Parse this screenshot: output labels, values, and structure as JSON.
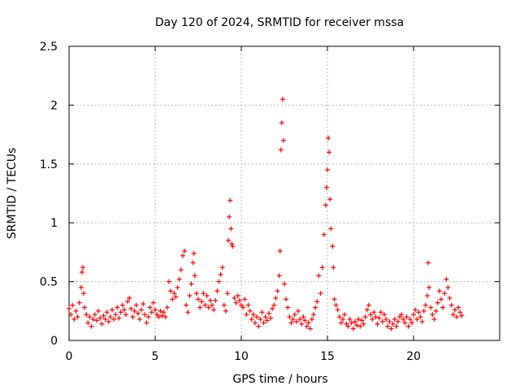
{
  "chart_data": {
    "type": "scatter",
    "title": "Day 120 of 2024, SRMTID for receiver mssa",
    "xlabel": "GPS time / hours",
    "ylabel": "SRMTID / TECUs",
    "xlim": [
      0,
      25
    ],
    "ylim": [
      0,
      2.5
    ],
    "xticks": [
      0,
      5,
      10,
      15,
      20
    ],
    "xtick_labels": [
      "0",
      "5",
      "10",
      "15",
      "20"
    ],
    "yticks": [
      0,
      0.5,
      1,
      1.5,
      2,
      2.5
    ],
    "ytick_labels": [
      "0",
      "0.5",
      "1",
      "1.5",
      "2",
      "2.5"
    ],
    "grid": true,
    "marker": "+",
    "series": [
      {
        "name": "SRMTID",
        "color": "#ff0000",
        "points": [
          [
            0.0,
            0.27
          ],
          [
            0.1,
            0.22
          ],
          [
            0.2,
            0.3
          ],
          [
            0.3,
            0.18
          ],
          [
            0.4,
            0.25
          ],
          [
            0.5,
            0.2
          ],
          [
            0.6,
            0.32
          ],
          [
            0.7,
            0.45
          ],
          [
            0.75,
            0.58
          ],
          [
            0.8,
            0.62
          ],
          [
            0.85,
            0.4
          ],
          [
            0.9,
            0.28
          ],
          [
            1.0,
            0.22
          ],
          [
            1.1,
            0.15
          ],
          [
            1.2,
            0.2
          ],
          [
            1.3,
            0.12
          ],
          [
            1.4,
            0.18
          ],
          [
            1.5,
            0.22
          ],
          [
            1.6,
            0.17
          ],
          [
            1.7,
            0.25
          ],
          [
            1.8,
            0.19
          ],
          [
            1.9,
            0.14
          ],
          [
            2.0,
            0.21
          ],
          [
            2.1,
            0.18
          ],
          [
            2.2,
            0.24
          ],
          [
            2.3,
            0.16
          ],
          [
            2.4,
            0.2
          ],
          [
            2.5,
            0.26
          ],
          [
            2.6,
            0.18
          ],
          [
            2.7,
            0.22
          ],
          [
            2.8,
            0.28
          ],
          [
            2.9,
            0.19
          ],
          [
            3.0,
            0.24
          ],
          [
            3.1,
            0.3
          ],
          [
            3.2,
            0.26
          ],
          [
            3.3,
            0.22
          ],
          [
            3.4,
            0.33
          ],
          [
            3.5,
            0.36
          ],
          [
            3.6,
            0.27
          ],
          [
            3.7,
            0.2
          ],
          [
            3.8,
            0.25
          ],
          [
            3.9,
            0.3
          ],
          [
            4.0,
            0.23
          ],
          [
            4.1,
            0.18
          ],
          [
            4.2,
            0.26
          ],
          [
            4.3,
            0.31
          ],
          [
            4.4,
            0.22
          ],
          [
            4.5,
            0.15
          ],
          [
            4.6,
            0.2
          ],
          [
            4.7,
            0.28
          ],
          [
            4.8,
            0.24
          ],
          [
            4.9,
            0.32
          ],
          [
            5.0,
            0.26
          ],
          [
            5.1,
            0.22
          ],
          [
            5.2,
            0.2
          ],
          [
            5.3,
            0.25
          ],
          [
            5.4,
            0.21
          ],
          [
            5.5,
            0.24
          ],
          [
            5.6,
            0.2
          ],
          [
            5.7,
            0.28
          ],
          [
            5.8,
            0.5
          ],
          [
            5.9,
            0.42
          ],
          [
            6.0,
            0.35
          ],
          [
            6.1,
            0.4
          ],
          [
            6.2,
            0.37
          ],
          [
            6.3,
            0.45
          ],
          [
            6.4,
            0.52
          ],
          [
            6.5,
            0.6
          ],
          [
            6.6,
            0.72
          ],
          [
            6.7,
            0.76
          ],
          [
            6.8,
            0.3
          ],
          [
            6.9,
            0.24
          ],
          [
            7.0,
            0.38
          ],
          [
            7.1,
            0.48
          ],
          [
            7.2,
            0.66
          ],
          [
            7.25,
            0.74
          ],
          [
            7.3,
            0.55
          ],
          [
            7.4,
            0.4
          ],
          [
            7.5,
            0.35
          ],
          [
            7.6,
            0.28
          ],
          [
            7.7,
            0.33
          ],
          [
            7.8,
            0.4
          ],
          [
            7.9,
            0.3
          ],
          [
            8.0,
            0.38
          ],
          [
            8.1,
            0.28
          ],
          [
            8.2,
            0.34
          ],
          [
            8.3,
            0.3
          ],
          [
            8.4,
            0.26
          ],
          [
            8.5,
            0.34
          ],
          [
            8.6,
            0.42
          ],
          [
            8.7,
            0.5
          ],
          [
            8.8,
            0.56
          ],
          [
            8.9,
            0.62
          ],
          [
            9.0,
            0.3
          ],
          [
            9.1,
            0.25
          ],
          [
            9.2,
            0.4
          ],
          [
            9.25,
            0.85
          ],
          [
            9.3,
            1.05
          ],
          [
            9.35,
            1.19
          ],
          [
            9.4,
            0.95
          ],
          [
            9.45,
            0.82
          ],
          [
            9.5,
            0.8
          ],
          [
            9.6,
            0.36
          ],
          [
            9.7,
            0.32
          ],
          [
            9.8,
            0.38
          ],
          [
            9.9,
            0.34
          ],
          [
            10.0,
            0.3
          ],
          [
            10.1,
            0.28
          ],
          [
            10.2,
            0.35
          ],
          [
            10.3,
            0.22
          ],
          [
            10.4,
            0.3
          ],
          [
            10.5,
            0.25
          ],
          [
            10.6,
            0.18
          ],
          [
            10.7,
            0.22
          ],
          [
            10.8,
            0.15
          ],
          [
            10.9,
            0.2
          ],
          [
            11.0,
            0.12
          ],
          [
            11.1,
            0.18
          ],
          [
            11.2,
            0.24
          ],
          [
            11.3,
            0.15
          ],
          [
            11.4,
            0.2
          ],
          [
            11.5,
            0.17
          ],
          [
            11.6,
            0.23
          ],
          [
            11.7,
            0.19
          ],
          [
            11.8,
            0.27
          ],
          [
            11.9,
            0.3
          ],
          [
            12.0,
            0.36
          ],
          [
            12.1,
            0.42
          ],
          [
            12.2,
            0.55
          ],
          [
            12.25,
            0.76
          ],
          [
            12.3,
            1.62
          ],
          [
            12.35,
            1.85
          ],
          [
            12.4,
            2.05
          ],
          [
            12.45,
            1.7
          ],
          [
            12.5,
            0.48
          ],
          [
            12.6,
            0.35
          ],
          [
            12.7,
            0.28
          ],
          [
            12.8,
            0.2
          ],
          [
            12.9,
            0.15
          ],
          [
            13.0,
            0.18
          ],
          [
            13.1,
            0.22
          ],
          [
            13.2,
            0.16
          ],
          [
            13.3,
            0.25
          ],
          [
            13.4,
            0.18
          ],
          [
            13.5,
            0.14
          ],
          [
            13.6,
            0.2
          ],
          [
            13.7,
            0.17
          ],
          [
            13.8,
            0.12
          ],
          [
            13.9,
            0.15
          ],
          [
            14.0,
            0.1
          ],
          [
            14.1,
            0.18
          ],
          [
            14.2,
            0.22
          ],
          [
            14.3,
            0.28
          ],
          [
            14.4,
            0.33
          ],
          [
            14.5,
            0.55
          ],
          [
            14.6,
            0.4
          ],
          [
            14.7,
            0.62
          ],
          [
            14.8,
            0.9
          ],
          [
            14.9,
            1.15
          ],
          [
            14.95,
            1.3
          ],
          [
            15.0,
            1.45
          ],
          [
            15.05,
            1.72
          ],
          [
            15.1,
            1.6
          ],
          [
            15.15,
            1.2
          ],
          [
            15.2,
            0.95
          ],
          [
            15.3,
            0.8
          ],
          [
            15.35,
            0.62
          ],
          [
            15.4,
            0.35
          ],
          [
            15.5,
            0.3
          ],
          [
            15.6,
            0.26
          ],
          [
            15.7,
            0.2
          ],
          [
            15.8,
            0.15
          ],
          [
            15.9,
            0.18
          ],
          [
            16.0,
            0.22
          ],
          [
            16.1,
            0.14
          ],
          [
            16.2,
            0.12
          ],
          [
            16.3,
            0.18
          ],
          [
            16.4,
            0.15
          ],
          [
            16.5,
            0.1
          ],
          [
            16.6,
            0.16
          ],
          [
            16.7,
            0.13
          ],
          [
            16.8,
            0.18
          ],
          [
            16.9,
            0.12
          ],
          [
            17.0,
            0.17
          ],
          [
            17.1,
            0.14
          ],
          [
            17.2,
            0.2
          ],
          [
            17.3,
            0.26
          ],
          [
            17.4,
            0.3
          ],
          [
            17.5,
            0.22
          ],
          [
            17.6,
            0.18
          ],
          [
            17.7,
            0.24
          ],
          [
            17.8,
            0.2
          ],
          [
            17.9,
            0.14
          ],
          [
            18.0,
            0.19
          ],
          [
            18.1,
            0.24
          ],
          [
            18.2,
            0.16
          ],
          [
            18.3,
            0.22
          ],
          [
            18.4,
            0.18
          ],
          [
            18.5,
            0.12
          ],
          [
            18.6,
            0.16
          ],
          [
            18.7,
            0.1
          ],
          [
            18.8,
            0.14
          ],
          [
            18.9,
            0.18
          ],
          [
            19.0,
            0.12
          ],
          [
            19.1,
            0.16
          ],
          [
            19.2,
            0.2
          ],
          [
            19.3,
            0.22
          ],
          [
            19.4,
            0.18
          ],
          [
            19.5,
            0.15
          ],
          [
            19.6,
            0.2
          ],
          [
            19.7,
            0.12
          ],
          [
            19.8,
            0.18
          ],
          [
            19.9,
            0.15
          ],
          [
            20.0,
            0.22
          ],
          [
            20.1,
            0.26
          ],
          [
            20.2,
            0.18
          ],
          [
            20.3,
            0.24
          ],
          [
            20.4,
            0.2
          ],
          [
            20.5,
            0.16
          ],
          [
            20.6,
            0.25
          ],
          [
            20.7,
            0.3
          ],
          [
            20.8,
            0.38
          ],
          [
            20.85,
            0.66
          ],
          [
            20.9,
            0.45
          ],
          [
            21.0,
            0.28
          ],
          [
            21.1,
            0.22
          ],
          [
            21.2,
            0.18
          ],
          [
            21.3,
            0.25
          ],
          [
            21.4,
            0.32
          ],
          [
            21.5,
            0.42
          ],
          [
            21.6,
            0.35
          ],
          [
            21.7,
            0.28
          ],
          [
            21.8,
            0.4
          ],
          [
            21.9,
            0.52
          ],
          [
            22.0,
            0.45
          ],
          [
            22.1,
            0.36
          ],
          [
            22.2,
            0.3
          ],
          [
            22.3,
            0.22
          ],
          [
            22.4,
            0.26
          ],
          [
            22.5,
            0.2
          ],
          [
            22.6,
            0.28
          ],
          [
            22.7,
            0.24
          ],
          [
            22.8,
            0.21
          ]
        ]
      }
    ]
  }
}
